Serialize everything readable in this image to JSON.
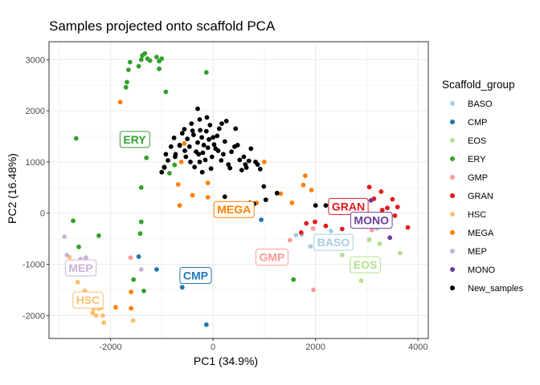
{
  "chart_data": {
    "type": "scatter",
    "title": "Samples projected onto scaffold PCA",
    "xlabel": "PC1 (34.9%)",
    "ylabel": "PC2 (16.48%)",
    "xlim": [
      -3200,
      4200
    ],
    "ylim": [
      -2450,
      3350
    ],
    "x_ticks": [
      -2000,
      0,
      2000,
      4000
    ],
    "y_ticks": [
      -2000,
      -1000,
      0,
      1000,
      2000,
      3000
    ],
    "x_tick_labels": [
      "-2000",
      "0",
      "2000",
      "4000"
    ],
    "y_tick_labels": [
      "-2000",
      "-1000",
      "0",
      "1000",
      "2000",
      "3000"
    ],
    "grid": true,
    "legend_position": "right",
    "legend_title": "Scaffold_group",
    "series": [
      {
        "name": "BASO",
        "color": "#A6CEE3",
        "points": [
          [
            1620,
            -430
          ],
          [
            1730,
            -420
          ],
          [
            1900,
            -650
          ],
          [
            2300,
            -350
          ],
          [
            3200,
            -300
          ]
        ]
      },
      {
        "name": "CMP",
        "color": "#1F78B4",
        "points": [
          [
            -1100,
            -1100
          ],
          [
            -600,
            -1450
          ],
          [
            -130,
            -2180
          ],
          [
            -1450,
            -850
          ],
          [
            940,
            -130
          ]
        ]
      },
      {
        "name": "EOS",
        "color": "#B2DF8A",
        "points": [
          [
            2520,
            -820
          ],
          [
            2890,
            -1320
          ],
          [
            3050,
            -520
          ],
          [
            3650,
            -780
          ],
          [
            3250,
            -600
          ]
        ]
      },
      {
        "name": "ERY",
        "color": "#33A02C",
        "points": [
          [
            -1650,
            2800
          ],
          [
            -1620,
            2950
          ],
          [
            -1450,
            2870
          ],
          [
            -1400,
            3000
          ],
          [
            -1380,
            3080
          ],
          [
            -1330,
            3120
          ],
          [
            -1280,
            3020
          ],
          [
            -1230,
            2980
          ],
          [
            -1100,
            3050
          ],
          [
            -1050,
            2970
          ],
          [
            -1000,
            3020
          ],
          [
            -1050,
            2820
          ],
          [
            -1680,
            2560
          ],
          [
            -1700,
            2460
          ],
          [
            -920,
            2370
          ],
          [
            -130,
            2750
          ],
          [
            -2670,
            1460
          ],
          [
            -1300,
            1080
          ],
          [
            -1400,
            500
          ],
          [
            -1400,
            -170
          ],
          [
            -1420,
            -400
          ],
          [
            -2730,
            -150
          ],
          [
            -2620,
            -660
          ],
          [
            -2230,
            -440
          ],
          [
            -1550,
            -1300
          ],
          [
            -1350,
            -1520
          ],
          [
            1570,
            -1300
          ],
          [
            -750,
            940
          ],
          [
            -850,
            780
          ],
          [
            -2660,
            -1000
          ]
        ]
      },
      {
        "name": "GMP",
        "color": "#FB9A99",
        "points": [
          [
            -1610,
            -870
          ],
          [
            1960,
            -1500
          ],
          [
            1500,
            -530
          ],
          [
            1950,
            -300
          ],
          [
            3100,
            -330
          ]
        ]
      },
      {
        "name": "GRAN",
        "color": "#E31A1C",
        "points": [
          [
            2520,
            -310
          ],
          [
            2800,
            50
          ],
          [
            3050,
            510
          ],
          [
            3140,
            280
          ],
          [
            3280,
            420
          ],
          [
            3400,
            100
          ],
          [
            3500,
            270
          ],
          [
            3550,
            -50
          ],
          [
            3800,
            -280
          ],
          [
            3600,
            120
          ],
          [
            3300,
            60
          ],
          [
            1820,
            -200
          ],
          [
            1720,
            -380
          ],
          [
            2200,
            -250
          ],
          [
            1990,
            -170
          ],
          [
            3120,
            -120
          ]
        ]
      },
      {
        "name": "HSC",
        "color": "#FDBF6F",
        "points": [
          [
            -2800,
            -860
          ],
          [
            -2720,
            -1100
          ],
          [
            -2640,
            -1350
          ],
          [
            -2500,
            -1520
          ],
          [
            -2350,
            -1800
          ],
          [
            -2330,
            -1870
          ],
          [
            -2280,
            -2000
          ],
          [
            -2230,
            -1870
          ],
          [
            -2180,
            -1850
          ],
          [
            -2150,
            -2000
          ],
          [
            -2130,
            -2140
          ],
          [
            -1560,
            -2100
          ],
          [
            -2300,
            -1600
          ],
          [
            -2350,
            -1950
          ]
        ]
      },
      {
        "name": "MEGA",
        "color": "#FF7F00",
        "points": [
          [
            -620,
            1000
          ],
          [
            -560,
            1360
          ],
          [
            -400,
            350
          ],
          [
            -100,
            590
          ],
          [
            -680,
            560
          ],
          [
            -1810,
            2170
          ],
          [
            -1600,
            -1540
          ],
          [
            -1600,
            -1860
          ],
          [
            -650,
            150
          ],
          [
            1000,
            1000
          ],
          [
            1320,
            380
          ],
          [
            1760,
            550
          ],
          [
            1800,
            730
          ],
          [
            1920,
            450
          ],
          [
            1540,
            200
          ],
          [
            -100,
            310
          ],
          [
            850,
            200
          ],
          [
            -1900,
            -1840
          ]
        ]
      },
      {
        "name": "MEP",
        "color": "#CAB2D6",
        "points": [
          [
            -2900,
            -460
          ],
          [
            -2850,
            -820
          ],
          [
            -2580,
            -900
          ],
          [
            -2480,
            -870
          ],
          [
            -1400,
            -1100
          ]
        ]
      },
      {
        "name": "MONO",
        "color": "#6A3D9A",
        "points": [
          [
            3080,
            250
          ],
          [
            3300,
            -140
          ],
          [
            3450,
            -480
          ],
          [
            3380,
            -200
          ]
        ]
      },
      {
        "name": "New_samples",
        "color": "#000000",
        "points": [
          [
            -1000,
            800
          ],
          [
            -950,
            900
          ],
          [
            -920,
            1150
          ],
          [
            -880,
            1030
          ],
          [
            -820,
            1300
          ],
          [
            -760,
            1470
          ],
          [
            -730,
            1150
          ],
          [
            -650,
            1320
          ],
          [
            -600,
            1560
          ],
          [
            -560,
            1640
          ],
          [
            -550,
            1220
          ],
          [
            -530,
            1100
          ],
          [
            -500,
            1450
          ],
          [
            -460,
            1300
          ],
          [
            -440,
            1000
          ],
          [
            -420,
            1750
          ],
          [
            -400,
            1610
          ],
          [
            -380,
            1530
          ],
          [
            -360,
            900
          ],
          [
            -330,
            1200
          ],
          [
            -300,
            1380
          ],
          [
            -280,
            1150
          ],
          [
            -260,
            1830
          ],
          [
            -250,
            1620
          ],
          [
            -220,
            1480
          ],
          [
            -210,
            800
          ],
          [
            -180,
            1330
          ],
          [
            -150,
            1040
          ],
          [
            -130,
            1600
          ],
          [
            -120,
            1870
          ],
          [
            -100,
            1280
          ],
          [
            -80,
            1440
          ],
          [
            -60,
            1720
          ],
          [
            -40,
            870
          ],
          [
            -20,
            1100
          ],
          [
            0,
            1480
          ],
          [
            20,
            1340
          ],
          [
            50,
            1260
          ],
          [
            80,
            1510
          ],
          [
            100,
            1220
          ],
          [
            120,
            1650
          ],
          [
            160,
            1030
          ],
          [
            170,
            1750
          ],
          [
            200,
            1150
          ],
          [
            230,
            1400
          ],
          [
            260,
            1800
          ],
          [
            300,
            950
          ],
          [
            330,
            880
          ],
          [
            360,
            1200
          ],
          [
            420,
            1300
          ],
          [
            480,
            1330
          ],
          [
            520,
            1040
          ],
          [
            560,
            840
          ],
          [
            600,
            1100
          ],
          [
            630,
            950
          ],
          [
            650,
            890
          ],
          [
            700,
            1020
          ],
          [
            740,
            1260
          ],
          [
            830,
            1000
          ],
          [
            870,
            950
          ],
          [
            -300,
            2040
          ],
          [
            -650,
            1330
          ],
          [
            -950,
            890
          ],
          [
            -200,
            1180
          ],
          [
            440,
            1650
          ],
          [
            920,
            860
          ],
          [
            990,
            520
          ],
          [
            1250,
            390
          ],
          [
            2000,
            150
          ],
          [
            2200,
            150
          ],
          [
            2510,
            150
          ],
          [
            230,
            320
          ],
          [
            720,
            200
          ],
          [
            800,
            180
          ],
          [
            1030,
            260
          ],
          [
            -260,
            1000
          ],
          [
            -740,
            1100
          ]
        ]
      }
    ],
    "annotations": [
      {
        "text": "ERY",
        "x": -1530,
        "y": 1440,
        "color": "#33A02C"
      },
      {
        "text": "MEGA",
        "x": 410,
        "y": 70,
        "color": "#FF7F00"
      },
      {
        "text": "GRAN",
        "x": 2640,
        "y": 130,
        "color": "#E31A1C"
      },
      {
        "text": "MONO",
        "x": 3090,
        "y": -140,
        "color": "#6A3D9A"
      },
      {
        "text": "BASO",
        "x": 2350,
        "y": -570,
        "color": "#A6CEE3"
      },
      {
        "text": "GMP",
        "x": 1150,
        "y": -860,
        "color": "#FB9A99"
      },
      {
        "text": "EOS",
        "x": 2970,
        "y": -1010,
        "color": "#B2DF8A"
      },
      {
        "text": "MEP",
        "x": -2580,
        "y": -1070,
        "color": "#CAB2D6"
      },
      {
        "text": "CMP",
        "x": -340,
        "y": -1220,
        "color": "#1F78B4"
      },
      {
        "text": "HSC",
        "x": -2440,
        "y": -1700,
        "color": "#FDBF6F"
      }
    ]
  }
}
